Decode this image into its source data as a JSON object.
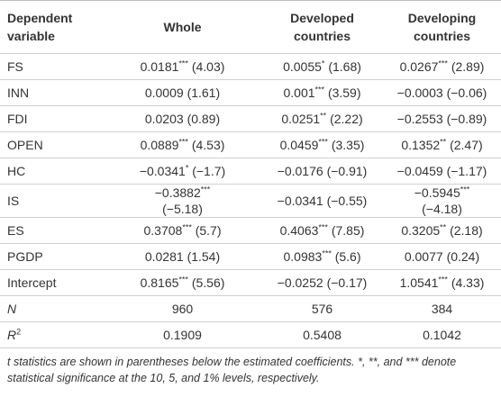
{
  "table": {
    "header": [
      "Dependent variable",
      "Whole",
      "Developed countries",
      "Developing countries"
    ],
    "rows": [
      {
        "label": "FS",
        "cells": [
          {
            "coef": "0.0181",
            "stars": "***",
            "t": "(4.03)"
          },
          {
            "coef": "0.0055",
            "stars": "*",
            "t": "(1.68)"
          },
          {
            "coef": "0.0267",
            "stars": "***",
            "t": "(2.89)"
          }
        ]
      },
      {
        "label": "INN",
        "cells": [
          {
            "coef": "0.0009",
            "t": "(1.61)"
          },
          {
            "coef": "0.001",
            "stars": "***",
            "t": "(3.59)"
          },
          {
            "coef": "−0.0003",
            "t": "(−0.06)"
          }
        ]
      },
      {
        "label": "FDI",
        "cells": [
          {
            "coef": "0.0203",
            "t": "(0.89)"
          },
          {
            "coef": "0.0251",
            "stars": "**",
            "t": "(2.22)"
          },
          {
            "coef": "−0.2553",
            "t": "(−0.89)"
          }
        ]
      },
      {
        "label": "OPEN",
        "cells": [
          {
            "coef": "0.0889",
            "stars": "***",
            "t": "(4.53)"
          },
          {
            "coef": "0.0459",
            "stars": "***",
            "t": "(3.35)"
          },
          {
            "coef": "0.1352",
            "stars": "**",
            "t": "(2.47)"
          }
        ]
      },
      {
        "label": "HC",
        "cells": [
          {
            "coef": "−0.0341",
            "stars": "*",
            "t": "(−1.7)"
          },
          {
            "coef": "−0.0176",
            "t": "(−0.91)"
          },
          {
            "coef": "−0.0459",
            "t": "(−1.17)"
          }
        ]
      },
      {
        "label": "IS",
        "cells": [
          {
            "coef": "−0.3882",
            "stars": "***",
            "t": "(−5.18)"
          },
          {
            "coef": "−0.0341",
            "t": "(−0.55)"
          },
          {
            "coef": "−0.5945",
            "stars": "***",
            "t": "(−4.18)"
          }
        ]
      },
      {
        "label": "ES",
        "cells": [
          {
            "coef": "0.3708",
            "stars": "***",
            "t": "(5.7)"
          },
          {
            "coef": "0.4063",
            "stars": "***",
            "t": "(7.85)"
          },
          {
            "coef": "0.3205",
            "stars": "**",
            "t": "(2.18)"
          }
        ]
      },
      {
        "label": "PGDP",
        "cells": [
          {
            "coef": "0.0281",
            "t": "(1.54)"
          },
          {
            "coef": "0.0983",
            "stars": "***",
            "t": "(5.6)"
          },
          {
            "coef": "0.0077",
            "t": "(0.24)"
          }
        ]
      },
      {
        "label": "Intercept",
        "cells": [
          {
            "coef": "0.8165",
            "stars": "***",
            "t": "(5.56)"
          },
          {
            "coef": "−0.0252",
            "t": "(−0.17)"
          },
          {
            "coef": "1.0541",
            "stars": "***",
            "t": "(4.33)"
          }
        ]
      },
      {
        "label": "N",
        "italic": true,
        "cells": [
          {
            "coef": "960"
          },
          {
            "coef": "576"
          },
          {
            "coef": "384"
          }
        ]
      },
      {
        "label": "R",
        "sup": "2",
        "italic": true,
        "cells": [
          {
            "coef": "0.1909"
          },
          {
            "coef": "0.5408"
          },
          {
            "coef": "0.1042"
          }
        ]
      }
    ],
    "note": "t statistics are shown in parentheses below the estimated coefficients. *, **, and *** denote statistical significance at the 10, 5, and 1% levels, respectively."
  }
}
